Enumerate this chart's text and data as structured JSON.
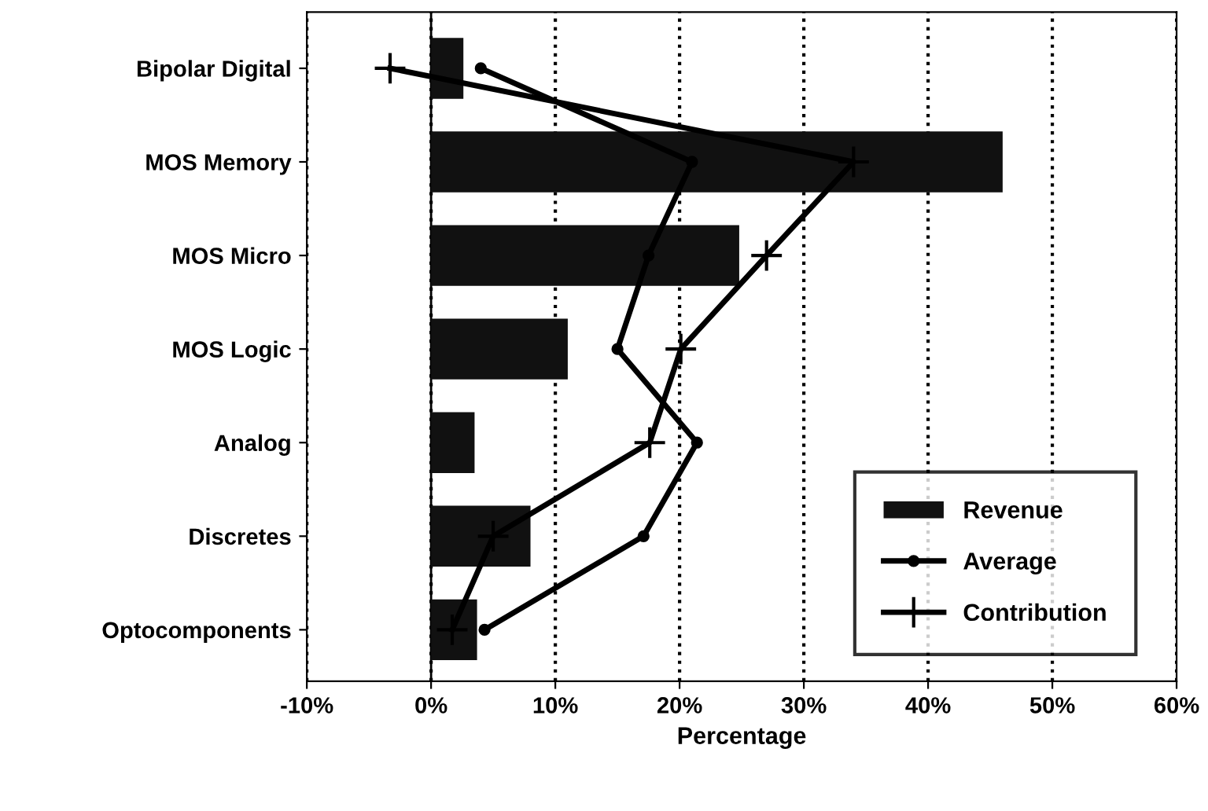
{
  "chart_data": {
    "type": "bar",
    "orientation": "horizontal",
    "xlabel": "Percentage",
    "categories": [
      "Bipolar Digital",
      "MOS Memory",
      "MOS Micro",
      "MOS Logic",
      "Analog",
      "Discretes",
      "Optocomponents"
    ],
    "series": [
      {
        "name": "Revenue",
        "color": "#111111",
        "values": [
          2.6,
          46,
          24.8,
          11,
          3.5,
          8,
          3.7
        ]
      },
      {
        "name": "Average",
        "type": "line",
        "color": "#000000",
        "marker": "circle",
        "values": [
          4,
          21,
          17.5,
          15,
          21.4,
          17.1,
          4.3
        ]
      },
      {
        "name": "Contribution",
        "type": "line",
        "color": "#000000",
        "marker": "cross",
        "values": [
          -3.3,
          34,
          27,
          20.1,
          17.6,
          5,
          1.7
        ]
      }
    ],
    "xlim": [
      -10,
      60
    ],
    "xticks": [
      {
        "value": -10,
        "label": "-10%"
      },
      {
        "value": 0,
        "label": "0%"
      },
      {
        "value": 10,
        "label": "10%"
      },
      {
        "value": 20,
        "label": "20%"
      },
      {
        "value": 30,
        "label": "30%"
      },
      {
        "value": 40,
        "label": "40%"
      },
      {
        "value": 50,
        "label": "50%"
      },
      {
        "value": 60,
        "label": "60%"
      }
    ],
    "grid": "x",
    "legend": "bottom right"
  }
}
